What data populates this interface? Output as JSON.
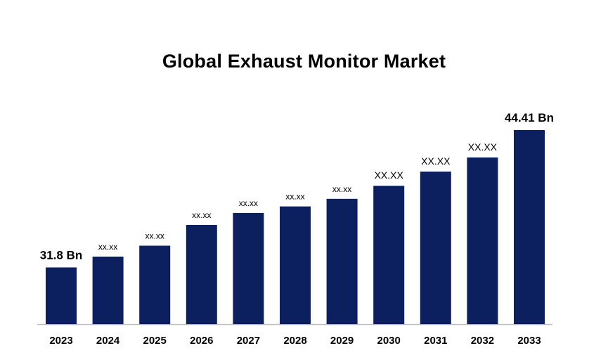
{
  "colors": {
    "bar": "#0c1f5e",
    "axis": "#bfbfbf",
    "text": "#000000"
  },
  "chart_data": {
    "type": "bar",
    "title": "Global Exhaust Monitor Market",
    "xlabel": "",
    "ylabel": "",
    "categories": [
      "2023",
      "2024",
      "2025",
      "2026",
      "2027",
      "2028",
      "2029",
      "2030",
      "2031",
      "2032",
      "2033"
    ],
    "values": [
      31.8,
      32.8,
      33.8,
      35.7,
      36.8,
      37.4,
      38.1,
      39.3,
      40.6,
      41.9,
      44.41
    ],
    "data_labels": [
      "31.8 Bn",
      "xx.xx",
      "xx.xx",
      "xx.xx",
      "xx.xx",
      "xx.xx",
      "xx.xx",
      "XX.XX",
      "XX.XX",
      "XX.XX",
      "44.41 Bn"
    ],
    "ylim": [
      26.6,
      45.5
    ],
    "grid": false,
    "legend": "none"
  }
}
